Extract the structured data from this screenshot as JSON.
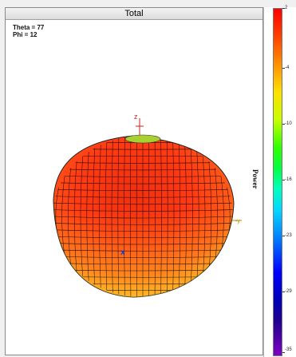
{
  "window": {
    "title": "Total"
  },
  "readouts": {
    "theta": "Theta = 77",
    "phi": "Phi = 12"
  },
  "axes": {
    "z_label": "z",
    "y_label": "-y"
  },
  "marker": {
    "label": "x"
  },
  "colorbar": {
    "title": "Power",
    "ticks": [
      "2",
      "-4",
      "-10",
      "-16",
      "-23",
      "-29",
      "-35"
    ]
  },
  "colors": {
    "surface_main": "#ff3a14",
    "surface_highlight": "#f04010",
    "surface_edge": "#ffa020",
    "surface_top": "#a8d030",
    "axis": "#cc2222",
    "mesh": "#000000"
  }
}
